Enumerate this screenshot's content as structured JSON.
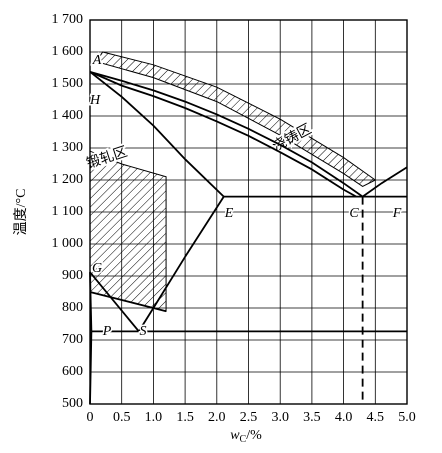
{
  "chart_data": {
    "type": "line",
    "x_label": {
      "symbol": "w",
      "subscript": "C",
      "unit": "/%"
    },
    "y_label": "温度/°C",
    "xlim": [
      0,
      5
    ],
    "ylim": [
      500,
      1700
    ],
    "xticks": [
      0,
      0.5,
      {
        "value": 1,
        "label": "1.0"
      },
      1.5,
      {
        "value": 2,
        "label": "2.0"
      },
      2.5,
      {
        "value": 3,
        "label": "3.0"
      },
      3.5,
      {
        "value": 4,
        "label": "4.0"
      },
      4.5,
      {
        "value": 5,
        "label": "5.0"
      }
    ],
    "yticks": [
      500,
      600,
      700,
      800,
      900,
      {
        "value": 1000,
        "label": "1 000"
      },
      {
        "value": 1100,
        "label": "1 100"
      },
      {
        "value": 1200,
        "label": "1 200"
      },
      {
        "value": 1300,
        "label": "1 300"
      },
      {
        "value": 1400,
        "label": "1 400"
      },
      {
        "value": 1500,
        "label": "1 500"
      },
      {
        "value": 1600,
        "label": "1 600"
      },
      {
        "value": 1700,
        "label": "1 700"
      }
    ],
    "grid": true,
    "color": "#000000",
    "series": [
      {
        "x": [
          0,
          0.5,
          1,
          1.5,
          2,
          2.5,
          3,
          3.5,
          4,
          4.3
        ],
        "values": [
          1538,
          1510,
          1480,
          1445,
          1405,
          1360,
          1310,
          1255,
          1190,
          1148
        ],
        "color": "#000000"
      },
      {
        "x": [
          0,
          0.5,
          1,
          1.5,
          2,
          2.5,
          3,
          3.5,
          4,
          4.2
        ],
        "values": [
          1538,
          1495,
          1462,
          1425,
          1383,
          1338,
          1287,
          1233,
          1170,
          1148
        ],
        "color": "#000000"
      },
      {
        "x": [
          4.3,
          4.6,
          5
        ],
        "values": [
          1148,
          1190,
          1240
        ],
        "color": "#000000"
      },
      {
        "x": [
          0,
          0.5,
          1,
          1.5,
          2.11
        ],
        "values": [
          1538,
          1460,
          1370,
          1265,
          1148
        ],
        "color": "#000000"
      },
      {
        "x": [
          2.11,
          5
        ],
        "values": [
          1148,
          1148
        ],
        "color": "#000000"
      },
      {
        "x": [
          0.77,
          1,
          1.5,
          2.11
        ],
        "values": [
          727,
          800,
          960,
          1148
        ],
        "color": "#000000"
      },
      {
        "x": [
          0,
          0.77
        ],
        "values": [
          912,
          727
        ],
        "color": "#000000"
      },
      {
        "x": [
          0,
          0.0218
        ],
        "values": [
          912,
          727
        ],
        "color": "#000000"
      },
      {
        "x": [
          0.0218,
          5
        ],
        "values": [
          727,
          727
        ],
        "color": "#000000"
      },
      {
        "x": [
          0.0218,
          0.01,
          0
        ],
        "values": [
          727,
          600,
          500
        ],
        "color": "#000000"
      },
      {
        "x": [
          0,
          1.2
        ],
        "values": [
          850,
          790
        ],
        "color": "#000000"
      },
      {
        "x": [
          4.3,
          4.3
        ],
        "values": [
          1148,
          500
        ],
        "color": "#000000",
        "dash": true
      }
    ],
    "regions": [
      {
        "label": "浇铸区",
        "x": [
          0.2,
          1,
          2,
          3,
          4,
          4.5,
          4.3,
          4,
          3,
          2,
          1,
          0.1
        ],
        "values": [
          1600,
          1560,
          1490,
          1390,
          1270,
          1200,
          1180,
          1220,
          1340,
          1445,
          1520,
          1570
        ]
      },
      {
        "label": "锻轧区",
        "x": [
          0,
          0.5,
          1.2,
          1.2,
          0
        ],
        "values": [
          1290,
          1250,
          1210,
          790,
          850
        ]
      }
    ],
    "point_labels": [
      "A",
      "H",
      "G",
      "P",
      "S",
      "E",
      "C",
      "F"
    ]
  }
}
